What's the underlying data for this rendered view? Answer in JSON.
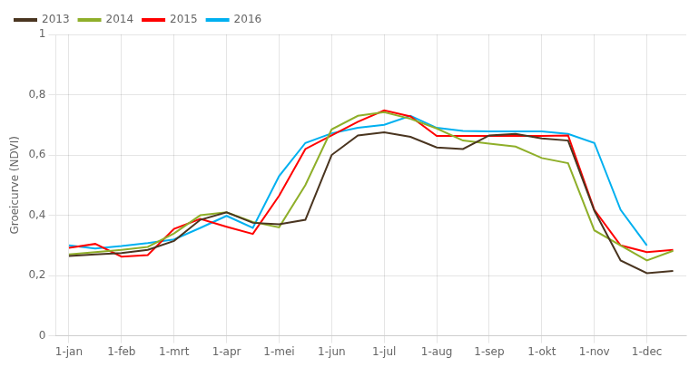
{
  "chart_data": {
    "type": "line",
    "ylabel": "Groeicurve (NDVI)",
    "x": [
      1,
      2,
      3,
      4,
      5,
      6,
      7,
      8,
      9,
      10,
      11,
      12,
      13,
      14,
      15,
      16,
      17,
      18,
      19,
      20,
      21,
      22,
      23,
      24
    ],
    "series": [
      {
        "name": "2013",
        "color": "#4a3520",
        "values": [
          0.265,
          0.27,
          0.275,
          0.285,
          0.315,
          0.385,
          0.41,
          0.375,
          0.37,
          0.385,
          0.6,
          0.665,
          0.675,
          0.66,
          0.625,
          0.62,
          0.665,
          0.67,
          0.655,
          0.648,
          0.415,
          0.25,
          0.208,
          0.215
        ]
      },
      {
        "name": "2014",
        "color": "#8faf2a",
        "values": [
          0.27,
          0.278,
          0.285,
          0.295,
          0.34,
          0.4,
          0.41,
          0.378,
          0.36,
          0.5,
          0.685,
          0.73,
          0.742,
          0.72,
          0.688,
          0.648,
          0.638,
          0.628,
          0.59,
          0.573,
          0.35,
          0.3,
          0.25,
          0.282
        ]
      },
      {
        "name": "2015",
        "color": "#ff0000",
        "values": [
          0.292,
          0.305,
          0.263,
          0.268,
          0.355,
          0.388,
          0.362,
          0.338,
          0.465,
          0.62,
          0.665,
          0.71,
          0.748,
          0.728,
          0.663,
          0.663,
          0.663,
          0.663,
          0.663,
          0.665,
          0.418,
          0.3,
          0.278,
          0.285
        ]
      },
      {
        "name": "2016",
        "color": "#00b0f0",
        "values": [
          0.3,
          0.29,
          0.298,
          0.308,
          0.32,
          0.358,
          0.398,
          0.358,
          0.53,
          0.64,
          0.672,
          0.69,
          0.7,
          0.73,
          0.69,
          0.68,
          0.678,
          0.678,
          0.678,
          0.67,
          0.64,
          0.418,
          0.3,
          null
        ]
      }
    ],
    "xlim": [
      0.5,
      24.5
    ],
    "xticks": [
      {
        "value": 1,
        "label": "1-jan"
      },
      {
        "value": 3,
        "label": "1-feb"
      },
      {
        "value": 5,
        "label": "1-mrt"
      },
      {
        "value": 7,
        "label": "1-apr"
      },
      {
        "value": 9,
        "label": "1-mei"
      },
      {
        "value": 11,
        "label": "1-jun"
      },
      {
        "value": 13,
        "label": "1-jul"
      },
      {
        "value": 15,
        "label": "1-aug"
      },
      {
        "value": 17,
        "label": "1-sep"
      },
      {
        "value": 19,
        "label": "1-okt"
      },
      {
        "value": 21,
        "label": "1-nov"
      },
      {
        "value": 23,
        "label": "1-dec"
      }
    ],
    "ylim": [
      0,
      1
    ],
    "yticks": [
      0,
      {
        "value": 0.2,
        "label": "0,2"
      },
      {
        "value": 0.4,
        "label": "0,4"
      },
      {
        "value": 0.6,
        "label": "0,6"
      },
      {
        "value": 0.8,
        "label": "0,8"
      },
      1
    ],
    "grid": true,
    "legend": "upper left"
  }
}
